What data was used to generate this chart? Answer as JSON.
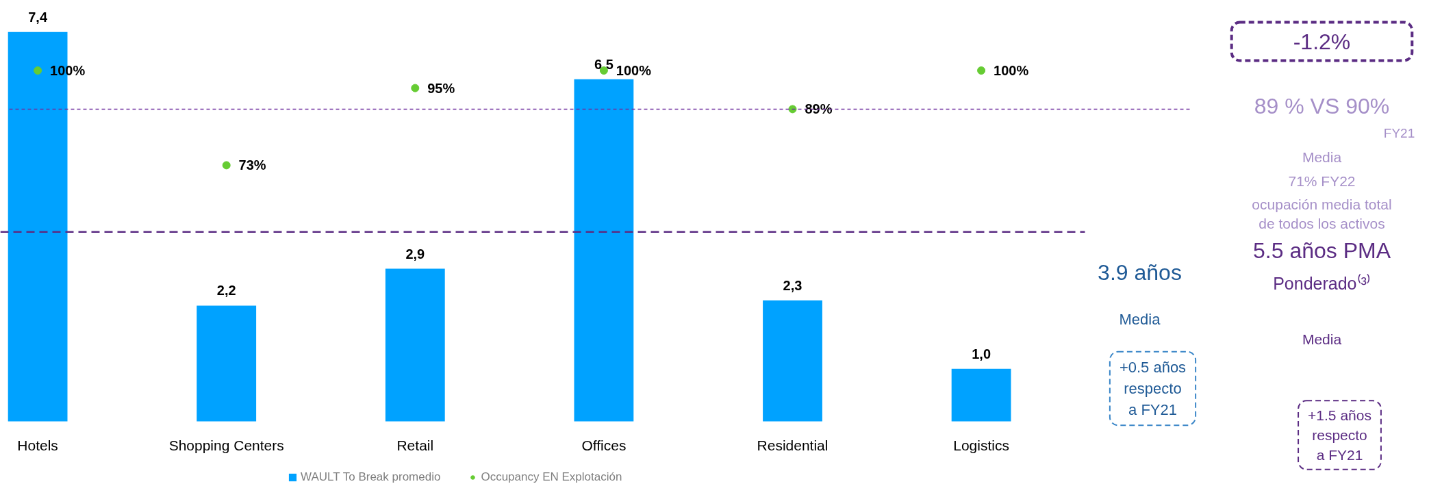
{
  "chart_data": {
    "type": "bar",
    "categories": [
      "Hotels",
      "Shopping Centers",
      "Retail",
      "Offices",
      "Residential",
      "Logistics"
    ],
    "series": [
      {
        "name": "WAULT To Break promedio",
        "color": "#00a2ff",
        "values": [
          7.4,
          2.2,
          2.9,
          6.5,
          2.3,
          1.0
        ],
        "value_labels": [
          "7,4",
          "2,2",
          "2,9",
          "6,5",
          "2,3",
          "1,0"
        ]
      },
      {
        "name": "Occupancy EN Explotación",
        "type": "scatter",
        "axis": "y2",
        "color": "#66cc33",
        "values": [
          100,
          73,
          95,
          100,
          89,
          100
        ],
        "value_labels": [
          "100%",
          "73%",
          "95%",
          "100%",
          "89%",
          "100%"
        ]
      }
    ],
    "ylim": [
      0,
      8
    ],
    "y2lim": [
      0,
      120
    ],
    "tick_labels": "x",
    "grid": false,
    "legend": "bottom",
    "marker": "circle",
    "ref_lines": [
      {
        "axis": "y2",
        "value": 89,
        "color": "#7030a0",
        "line_style": "dashed"
      },
      {
        "axis": "y",
        "value": 3.6,
        "color": "#5b2c83",
        "line_style": "dashed"
      }
    ],
    "annotations": [
      "3.9 años",
      "Media",
      "+0.5 años respecto a FY21",
      "-1.2%",
      "89 % VS 90%",
      "FY21",
      "Media",
      "71% FY22",
      "ocupación media total de todos los activos",
      "5.5 años PMA",
      "Ponderado⁽³⁾",
      "Media",
      "+1.5 años respecto a FY21"
    ]
  }
}
